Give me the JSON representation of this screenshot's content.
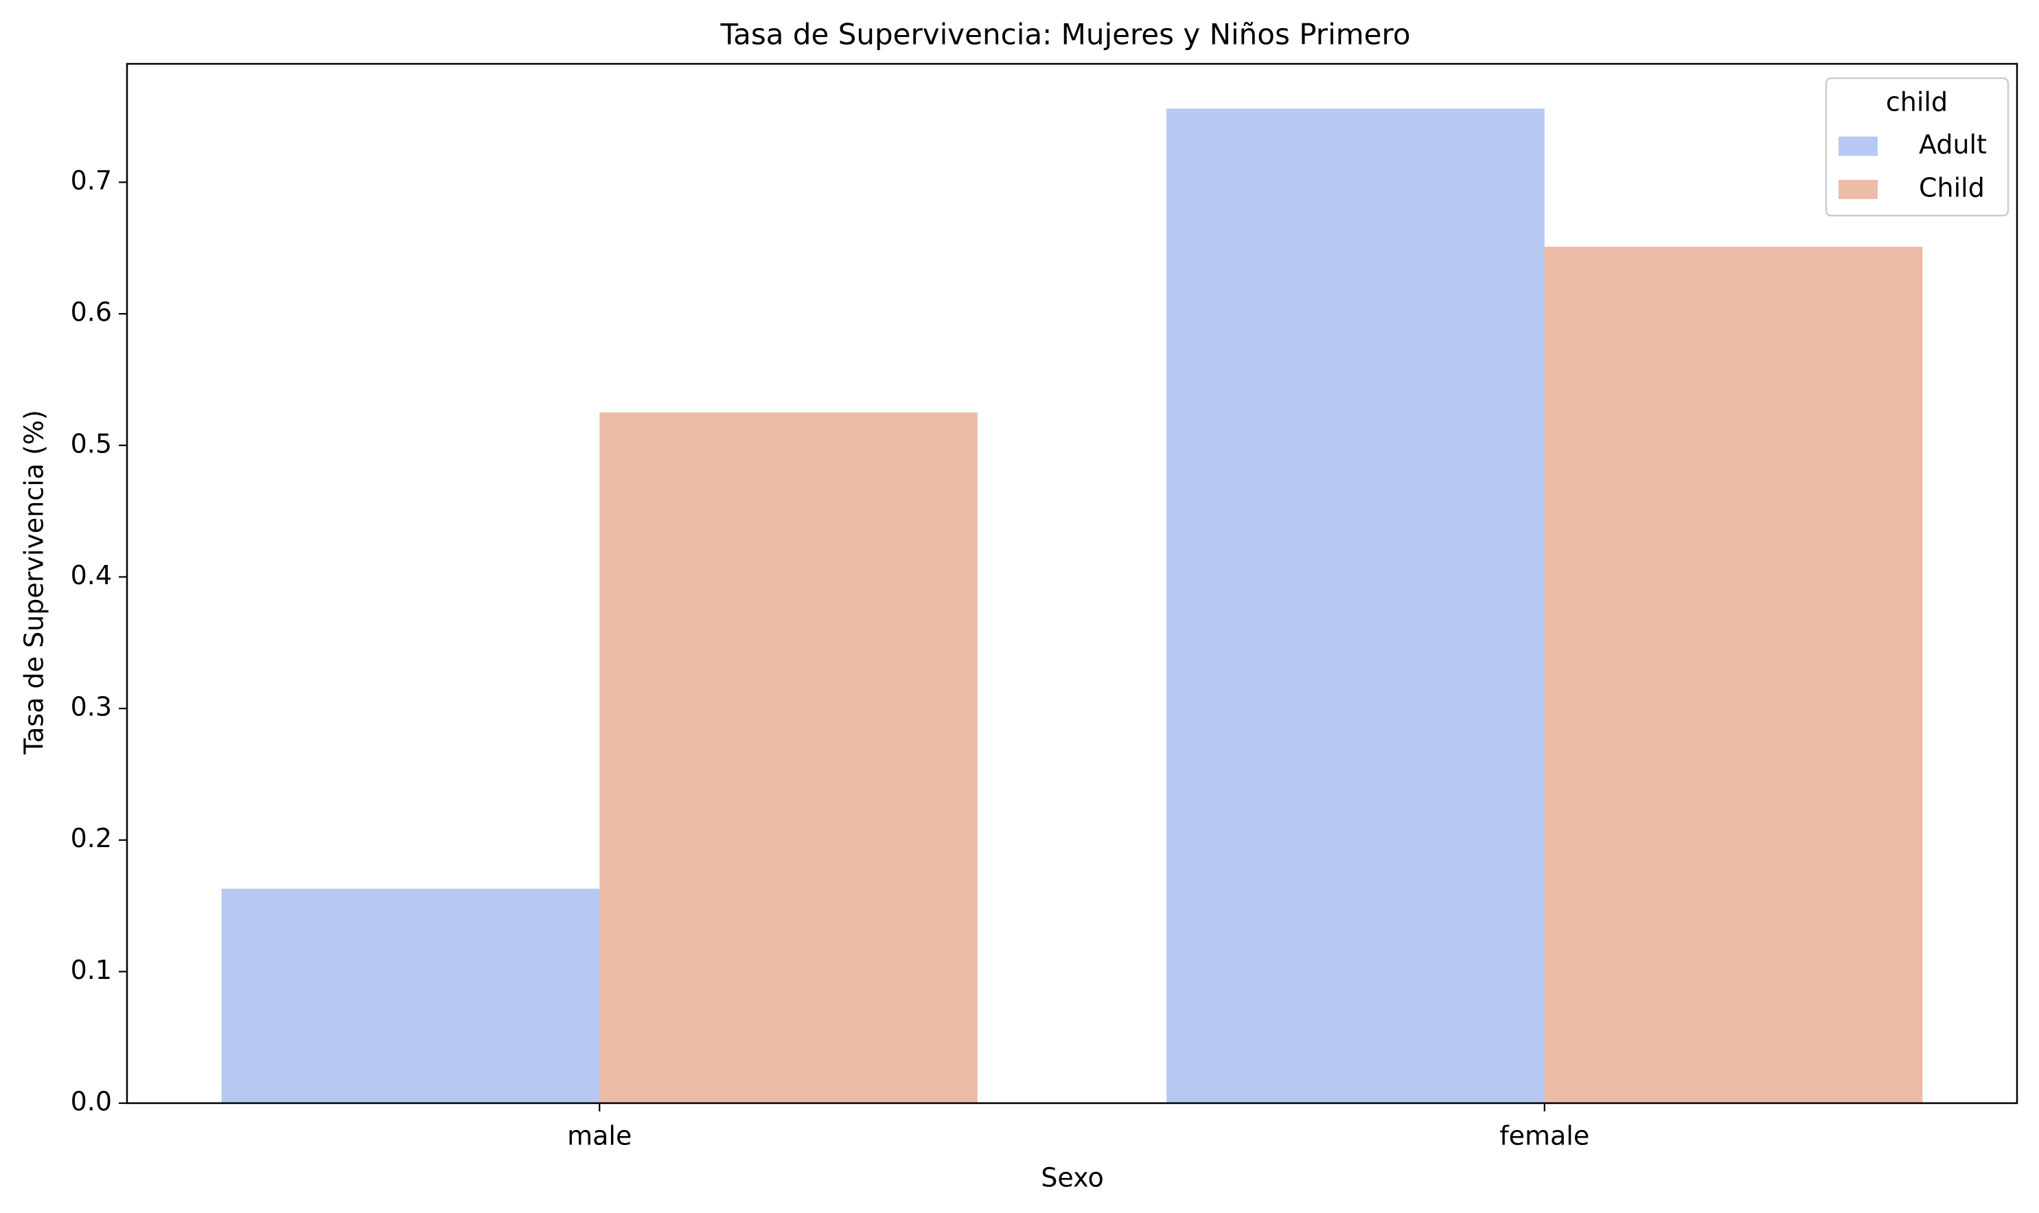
{
  "chart_data": {
    "type": "bar",
    "title": "Tasa de Supervivencia: Mujeres y Niños Primero",
    "xlabel": "Sexo",
    "ylabel": "Tasa de Supervivencia (%)",
    "categories": [
      "male",
      "female"
    ],
    "series": [
      {
        "name": "Adult",
        "values": [
          0.163,
          0.756
        ],
        "color": "#b5c9f2"
      },
      {
        "name": "Child",
        "values": [
          0.525,
          0.651
        ],
        "color": "#ebbca6"
      }
    ],
    "ylim": [
      0,
      0.79
    ],
    "yticks": [
      0.0,
      0.1,
      0.2,
      0.3,
      0.4,
      0.5,
      0.6,
      0.7
    ],
    "ytick_labels": [
      "0.0",
      "0.1",
      "0.2",
      "0.3",
      "0.4",
      "0.5",
      "0.6",
      "0.7"
    ],
    "grid": false,
    "legend": {
      "title": "child",
      "position": "top-right"
    }
  }
}
